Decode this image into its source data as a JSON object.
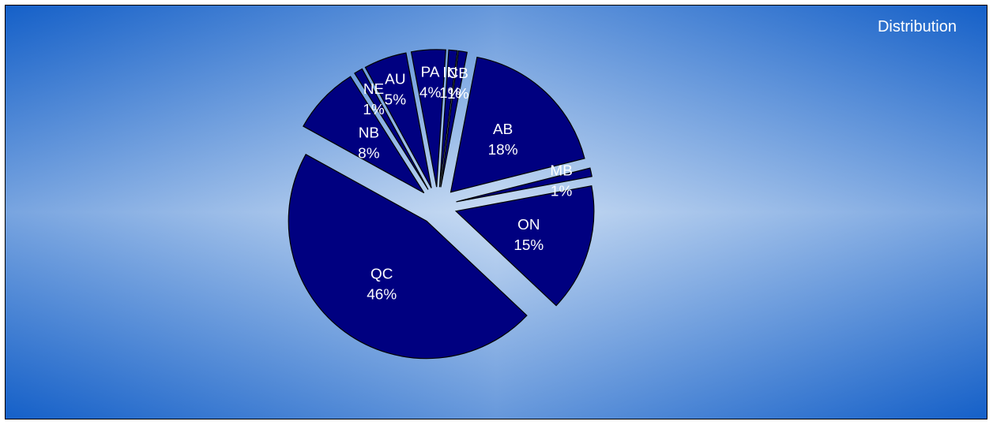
{
  "chart_data": {
    "type": "pie",
    "title": "",
    "legend": {
      "label": "Distribution",
      "placement": "top-right"
    },
    "exploded": true,
    "colors": {
      "slice": "#000080",
      "background_center": "#c9dcf3",
      "background_edge": "#1560c8"
    },
    "slices": [
      {
        "name": "AB",
        "value": 18,
        "label": "18%"
      },
      {
        "name": "MB",
        "value": 1,
        "label": "1%"
      },
      {
        "name": "ON",
        "value": 15,
        "label": "15%"
      },
      {
        "name": "QC",
        "value": 46,
        "label": "46%"
      },
      {
        "name": "NB",
        "value": 8,
        "label": "8%"
      },
      {
        "name": "NE",
        "value": 1,
        "label": "1%"
      },
      {
        "name": "AU",
        "value": 5,
        "label": "5%"
      },
      {
        "name": "PA",
        "value": 4,
        "label": "4%"
      },
      {
        "name": "IN",
        "value": 1,
        "label": "1%"
      },
      {
        "name": "CB",
        "value": 1,
        "label": "1%"
      }
    ]
  }
}
